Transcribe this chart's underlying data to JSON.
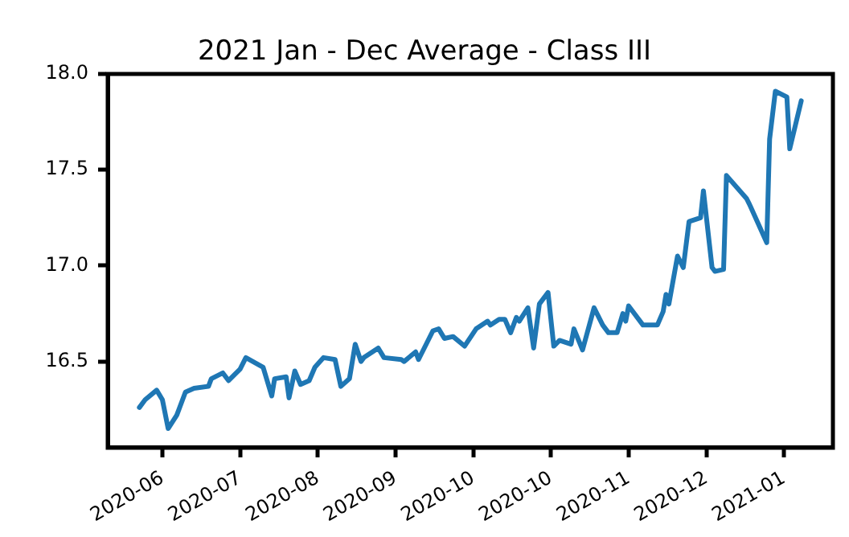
{
  "chart_data": {
    "type": "line",
    "title": "2021 Jan - Dec Average - Class III",
    "x": [
      "2020-06-07",
      "2020-06-09",
      "2020-06-13",
      "2020-06-15",
      "2020-06-17",
      "2020-06-20",
      "2020-06-23",
      "2020-06-26",
      "2020-07-01",
      "2020-07-02",
      "2020-07-06",
      "2020-07-08",
      "2020-07-12",
      "2020-07-14",
      "2020-07-20",
      "2020-07-23",
      "2020-07-24",
      "2020-07-28",
      "2020-07-29",
      "2020-07-31",
      "2020-08-02",
      "2020-08-05",
      "2020-08-07",
      "2020-08-10",
      "2020-08-14",
      "2020-08-16",
      "2020-08-19",
      "2020-08-21",
      "2020-08-23",
      "2020-08-24",
      "2020-08-29",
      "2020-08-31",
      "2020-09-06",
      "2020-09-07",
      "2020-09-11",
      "2020-09-12",
      "2020-09-17",
      "2020-09-19",
      "2020-09-21",
      "2020-09-24",
      "2020-09-28",
      "2020-10-02",
      "2020-10-06",
      "2020-10-07",
      "2020-10-10",
      "2020-10-12",
      "2020-10-14",
      "2020-10-16",
      "2020-10-17",
      "2020-10-20",
      "2020-10-22",
      "2020-10-24",
      "2020-10-27",
      "2020-10-29",
      "2020-10-31",
      "2020-11-04",
      "2020-11-05",
      "2020-11-08",
      "2020-11-12",
      "2020-11-15",
      "2020-11-17",
      "2020-11-20",
      "2020-11-22",
      "2020-11-23",
      "2020-11-24",
      "2020-11-29",
      "2020-12-04",
      "2020-12-06",
      "2020-12-07",
      "2020-12-08",
      "2020-12-11",
      "2020-12-13",
      "2020-12-15",
      "2020-12-19",
      "2020-12-20",
      "2020-12-23",
      "2020-12-24",
      "2020-12-27",
      "2020-12-28",
      "2021-01-04",
      "2021-01-05",
      "2021-01-11",
      "2021-01-12",
      "2021-01-14",
      "2021-01-18",
      "2021-01-19",
      "2021-01-23"
    ],
    "series": [
      {
        "color": "#1f77b4",
        "values": [
          16.26,
          16.3,
          16.35,
          16.3,
          16.15,
          16.22,
          16.34,
          16.36,
          16.37,
          16.41,
          16.44,
          16.4,
          16.46,
          16.52,
          16.47,
          16.32,
          16.41,
          16.42,
          16.31,
          16.45,
          16.38,
          16.4,
          16.47,
          16.52,
          16.51,
          16.37,
          16.41,
          16.59,
          16.5,
          16.52,
          16.57,
          16.52,
          16.51,
          16.5,
          16.55,
          16.51,
          16.66,
          16.67,
          16.62,
          16.63,
          16.58,
          16.67,
          16.71,
          16.69,
          16.72,
          16.72,
          16.65,
          16.73,
          16.71,
          16.78,
          16.57,
          16.8,
          16.86,
          16.58,
          16.61,
          16.59,
          16.67,
          16.56,
          16.78,
          16.69,
          16.65,
          16.65,
          16.75,
          16.71,
          16.79,
          16.69,
          16.69,
          16.76,
          16.85,
          16.8,
          17.05,
          16.99,
          17.23,
          17.25,
          17.39,
          16.99,
          16.97,
          16.98,
          17.47,
          17.35,
          17.32,
          17.12,
          17.66,
          17.91,
          17.88,
          17.61,
          17.86
        ]
      }
    ],
    "xlim": [
      "2020-05-27",
      "2021-02-03"
    ],
    "xticks": [
      {
        "value": "2020-06-15",
        "label": "2020-06"
      },
      {
        "value": "2020-07-12",
        "label": "2020-07"
      },
      {
        "value": "2020-08-08",
        "label": "2020-08"
      },
      {
        "value": "2020-09-04",
        "label": "2020-09"
      },
      {
        "value": "2020-10-01",
        "label": "2020-10"
      },
      {
        "value": "2020-10-28",
        "label": "2020-10"
      },
      {
        "value": "2020-11-24",
        "label": "2020-11"
      },
      {
        "value": "2020-12-21",
        "label": "2020-12"
      },
      {
        "value": "2021-01-17",
        "label": "2021-01"
      }
    ],
    "ylim": [
      16.05,
      18.0
    ],
    "yticks": [
      {
        "value": 16.5,
        "label": "16.5"
      },
      {
        "value": 17.0,
        "label": "17.0"
      },
      {
        "value": 17.5,
        "label": "17.5"
      },
      {
        "value": 18.0,
        "label": "18.0"
      }
    ],
    "grid": false,
    "legend": false,
    "marker": "none",
    "line_style": "solid"
  }
}
